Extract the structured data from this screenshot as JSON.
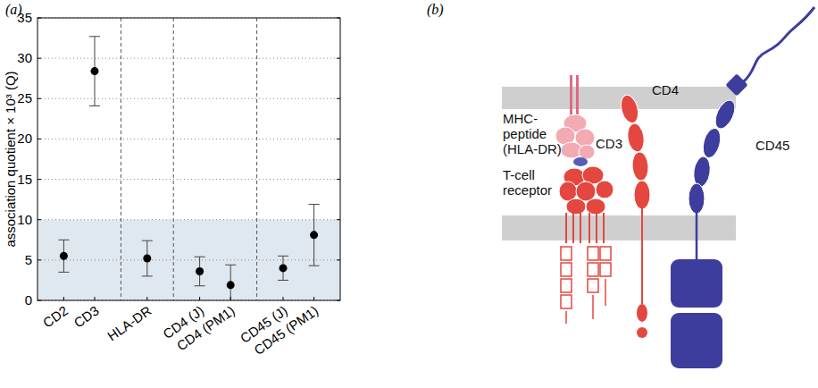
{
  "chart_data": {
    "type": "scatter",
    "title": "(a)",
    "y_label": "association quotient × 10³ (Q)",
    "categories": [
      "CD2",
      "CD3",
      "HLA-DR",
      "CD4 (J)",
      "CD4 (PM1)",
      "CD45 (J)",
      "CD45 (PM1)"
    ],
    "values": [
      5.5,
      28.4,
      5.2,
      3.6,
      1.9,
      4.0,
      8.1
    ],
    "errors": [
      2.0,
      4.3,
      2.2,
      1.8,
      2.5,
      1.5,
      3.8
    ],
    "ylim": [
      0,
      35
    ],
    "yticks": [
      0,
      5,
      10,
      15,
      20,
      25,
      30,
      35
    ],
    "grid": true,
    "marker": "circle",
    "color": "#000000",
    "shaded_range": [
      0,
      10
    ]
  },
  "diagram": {
    "panel": "(b)",
    "labels": [
      [
        "MHC-",
        "peptide",
        "(HLA-DR)"
      ],
      [
        "T-cell",
        "receptor"
      ],
      [
        "CD3"
      ],
      [
        "CD4"
      ],
      [
        "CD45"
      ]
    ]
  }
}
